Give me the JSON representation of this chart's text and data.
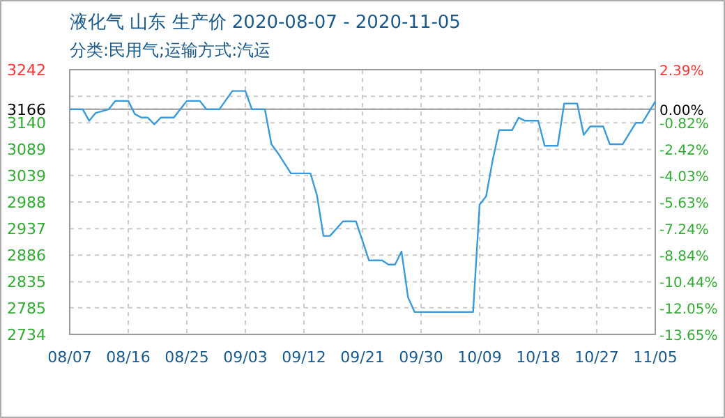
{
  "chart_data": {
    "type": "line",
    "title": "液化气 山东 生产价 2020-08-07 - 2020-11-05",
    "subtitle": "分类:民用气;运输方式:汽运",
    "x": [
      "2020-08-07",
      "2020-08-09",
      "2020-08-10",
      "2020-08-11",
      "2020-08-13",
      "2020-08-14",
      "2020-08-16",
      "2020-08-17",
      "2020-08-18",
      "2020-08-19",
      "2020-08-20",
      "2020-08-21",
      "2020-08-23",
      "2020-08-24",
      "2020-08-25",
      "2020-08-27",
      "2020-08-28",
      "2020-08-30",
      "2020-09-01",
      "2020-09-03",
      "2020-09-04",
      "2020-09-06",
      "2020-09-07",
      "2020-09-08",
      "2020-09-10",
      "2020-09-13",
      "2020-09-14",
      "2020-09-15",
      "2020-09-16",
      "2020-09-18",
      "2020-09-20",
      "2020-09-22",
      "2020-09-24",
      "2020-09-25",
      "2020-09-26",
      "2020-09-27",
      "2020-09-28",
      "2020-09-29",
      "2020-10-08",
      "2020-10-09",
      "2020-10-10",
      "2020-10-11",
      "2020-10-12",
      "2020-10-14",
      "2020-10-15",
      "2020-10-16",
      "2020-10-18",
      "2020-10-19",
      "2020-10-21",
      "2020-10-22",
      "2020-10-24",
      "2020-10-25",
      "2020-10-26",
      "2020-10-28",
      "2020-10-29",
      "2020-10-31",
      "2020-11-02",
      "2020-11-03",
      "2020-11-05"
    ],
    "series": [
      {
        "color": "#3a9ad9",
        "values": [
          3166,
          3166,
          3144,
          3159,
          3166,
          3182,
          3182,
          3157,
          3150,
          3150,
          3137,
          3150,
          3150,
          3166,
          3182,
          3182,
          3166,
          3166,
          3201,
          3201,
          3166,
          3166,
          3099,
          3082,
          3043,
          3043,
          3001,
          2923,
          2923,
          2951,
          2951,
          2876,
          2876,
          2868,
          2868,
          2893,
          2805,
          2777,
          2777,
          2983,
          2999,
          3068,
          3126,
          3126,
          3150,
          3144,
          3144,
          3096,
          3096,
          3177,
          3177,
          3117,
          3133,
          3133,
          3099,
          3099,
          3140,
          3140,
          3181
        ]
      }
    ],
    "xlim": [
      "2020-08-07",
      "2020-11-05"
    ],
    "xticks": [
      {
        "value": "2020-08-07",
        "label": "08/07"
      },
      {
        "value": "2020-08-16",
        "label": "08/16"
      },
      {
        "value": "2020-08-25",
        "label": "08/25"
      },
      {
        "value": "2020-09-03",
        "label": "09/03"
      },
      {
        "value": "2020-09-12",
        "label": "09/12"
      },
      {
        "value": "2020-09-21",
        "label": "09/21"
      },
      {
        "value": "2020-09-30",
        "label": "09/30"
      },
      {
        "value": "2020-10-09",
        "label": "10/09"
      },
      {
        "value": "2020-10-18",
        "label": "10/18"
      },
      {
        "value": "2020-10-27",
        "label": "10/27"
      },
      {
        "value": "2020-11-05",
        "label": "11/05"
      }
    ],
    "ylim": [
      2734,
      3242
    ],
    "yticks": [
      3242,
      {
        "value": 3191,
        "label": null
      },
      3166,
      3140,
      3089,
      3039,
      2988,
      2937,
      2886,
      2835,
      2785,
      2734
    ],
    "y2lim": [
      -13.65,
      2.39
    ],
    "y2ticks": [
      {
        "value": 2.39,
        "label": "2.39%"
      },
      {
        "value": 0,
        "label": "0.00%"
      },
      {
        "value": -0.82,
        "label": "-0.82%"
      },
      {
        "value": -2.42,
        "label": "-2.42%"
      },
      {
        "value": -4.03,
        "label": "-4.03%"
      },
      {
        "value": -5.63,
        "label": "-5.63%"
      },
      {
        "value": -7.24,
        "label": "-7.24%"
      },
      {
        "value": -8.84,
        "label": "-8.84%"
      },
      {
        "value": -10.44,
        "label": "-10.44%"
      },
      {
        "value": -12.05,
        "label": "-12.05%"
      },
      {
        "value": -13.65,
        "label": "-13.65%"
      }
    ],
    "ref_lines": [
      {
        "axis": "y",
        "value": 3166,
        "color": "#999999",
        "line_style": "solid"
      }
    ],
    "grid": true,
    "marker": "none",
    "line_style": "solid"
  }
}
